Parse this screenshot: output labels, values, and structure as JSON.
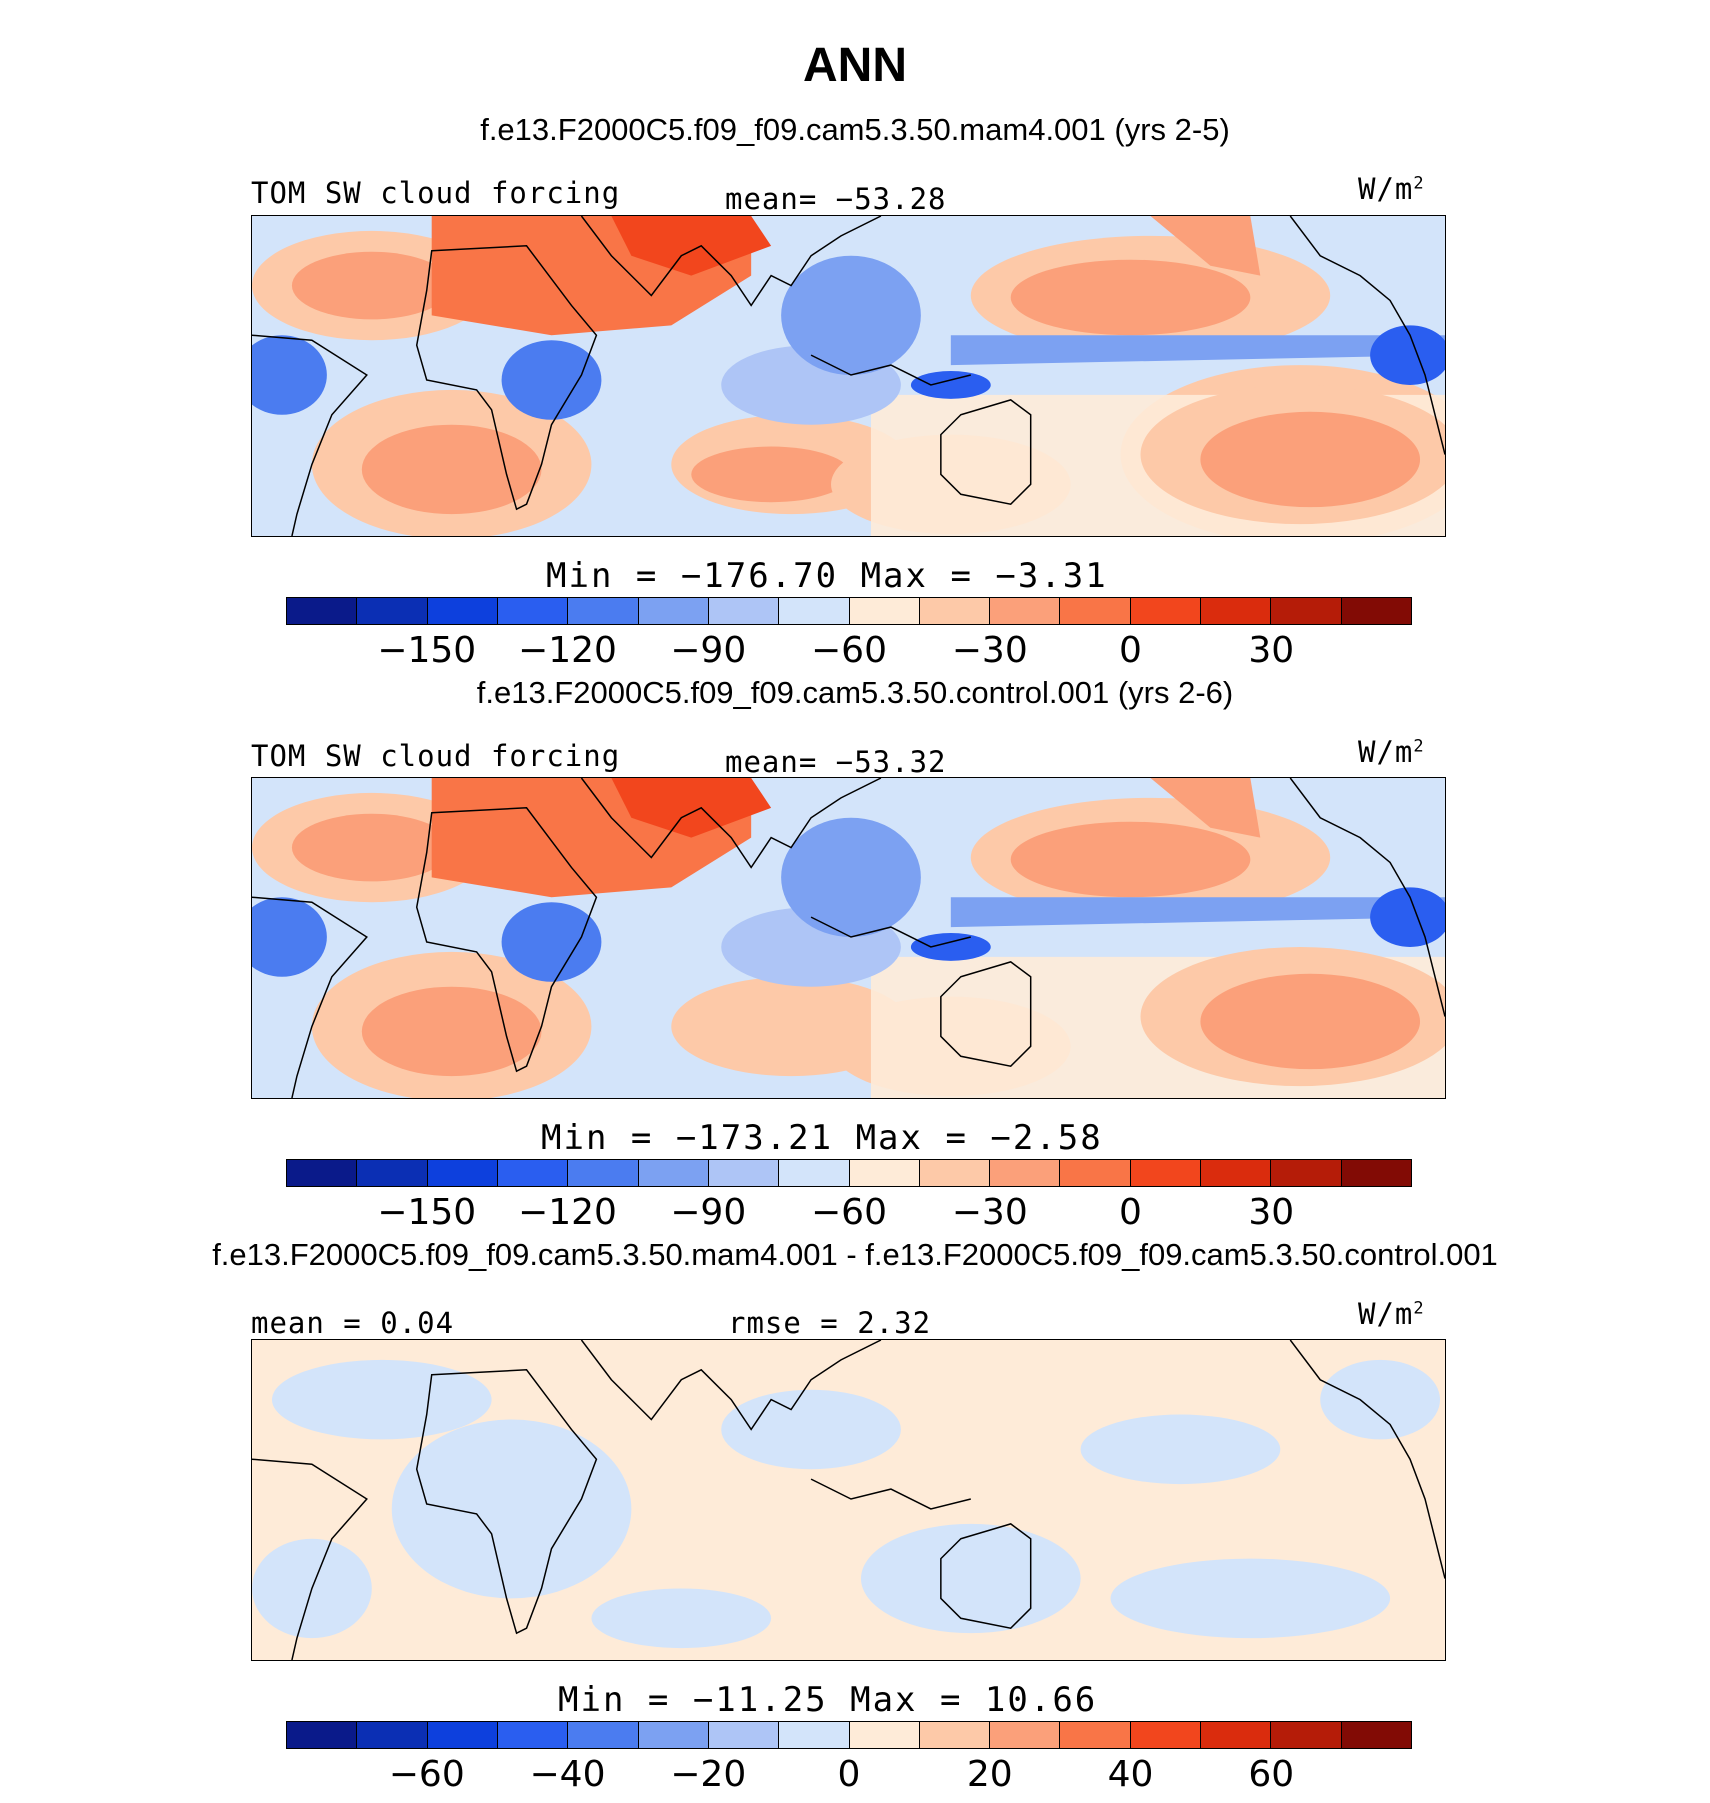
{
  "title": "ANN",
  "colorbar_colors": [
    "#0a1a8a",
    "#0b2fb4",
    "#0d40dd",
    "#2a5ef0",
    "#4b7cf0",
    "#7ca1f2",
    "#aec5f6",
    "#d3e4fa",
    "#feebd8",
    "#fdc9a8",
    "#fba07a",
    "#f97547",
    "#f2461d",
    "#da2c0d",
    "#b51c08",
    "#820b05"
  ],
  "panels": [
    {
      "case_title": "f.e13.F2000C5.f09_f09.cam5.3.50.mam4.001 (yrs 2-5)",
      "left_label": "TOM SW cloud forcing",
      "center_label": "mean= −53.28",
      "units": "W/m",
      "units_sup": "2",
      "minmax": "Min = −176.70 Max =  −3.31",
      "ticks": [
        "−150",
        "−120",
        "−90",
        "−60",
        "−30",
        "0",
        "30"
      ]
    },
    {
      "case_title": "f.e13.F2000C5.f09_f09.cam5.3.50.control.001 (yrs 2-6)",
      "left_label": "TOM SW cloud forcing",
      "center_label": "mean= −53.32",
      "units": "W/m",
      "units_sup": "2",
      "minmax": "Min = −173.21 Max =  −2.58",
      "ticks": [
        "−150",
        "−120",
        "−90",
        "−60",
        "−30",
        "0",
        "30"
      ]
    },
    {
      "case_title": "f.e13.F2000C5.f09_f09.cam5.3.50.mam4.001 - f.e13.F2000C5.f09_f09.cam5.3.50.control.001",
      "left_label": "mean =   0.04",
      "center_label": "rmse =   2.32",
      "units": "W/m",
      "units_sup": "2",
      "minmax": "Min = −11.25 Max =  10.66",
      "ticks": [
        "−60",
        "−40",
        "−20",
        "0",
        "20",
        "40",
        "60"
      ]
    }
  ],
  "chart_data": [
    {
      "type": "heatmap",
      "title": "f.e13.F2000C5.f09_f09.cam5.3.50.mam4.001 (yrs 2-5)",
      "variable": "TOM SW cloud forcing",
      "units": "W/m2",
      "mean": -53.28,
      "min": -176.7,
      "max": -3.31,
      "colorbar_levels": [
        -165,
        -150,
        -135,
        -120,
        -105,
        -90,
        -75,
        -60,
        -45,
        -30,
        -15,
        0,
        15,
        30,
        45
      ],
      "colorbar_tick_labels": [
        -150,
        -120,
        -90,
        -60,
        -30,
        0,
        30
      ]
    },
    {
      "type": "heatmap",
      "title": "f.e13.F2000C5.f09_f09.cam5.3.50.control.001 (yrs 2-6)",
      "variable": "TOM SW cloud forcing",
      "units": "W/m2",
      "mean": -53.32,
      "min": -173.21,
      "max": -2.58,
      "colorbar_levels": [
        -165,
        -150,
        -135,
        -120,
        -105,
        -90,
        -75,
        -60,
        -45,
        -30,
        -15,
        0,
        15,
        30,
        45
      ],
      "colorbar_tick_labels": [
        -150,
        -120,
        -90,
        -60,
        -30,
        0,
        30
      ]
    },
    {
      "type": "heatmap",
      "title": "f.e13.F2000C5.f09_f09.cam5.3.50.mam4.001 - f.e13.F2000C5.f09_f09.cam5.3.50.control.001",
      "units": "W/m2",
      "mean": 0.04,
      "rmse": 2.32,
      "min": -11.25,
      "max": 10.66,
      "colorbar_levels": [
        -70,
        -60,
        -50,
        -40,
        -30,
        -20,
        -10,
        0,
        10,
        20,
        30,
        40,
        50,
        60,
        70
      ],
      "colorbar_tick_labels": [
        -60,
        -40,
        -20,
        0,
        20,
        40,
        60
      ]
    }
  ]
}
